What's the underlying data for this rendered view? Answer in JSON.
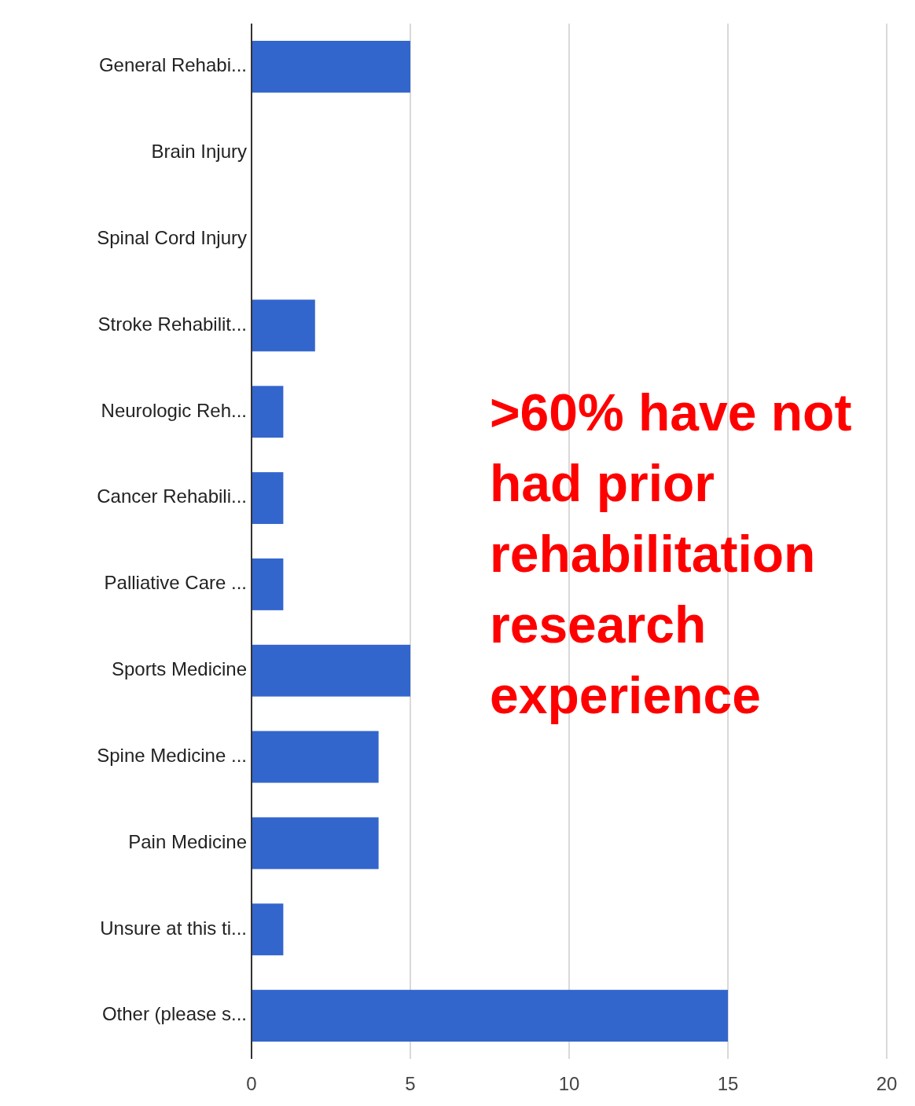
{
  "chart_data": {
    "type": "bar",
    "orientation": "horizontal",
    "categories": [
      "General Rehabi...",
      "Brain Injury",
      "Spinal Cord Injury",
      "Stroke Rehabilit...",
      "Neurologic Reh...",
      "Cancer Rehabili...",
      "Palliative Care ...",
      "Sports Medicine",
      "Spine Medicine ...",
      "Pain Medicine",
      "Unsure at this ti...",
      "Other (please s..."
    ],
    "values": [
      5,
      0,
      0,
      2,
      1,
      1,
      1,
      5,
      4,
      4,
      1,
      15
    ],
    "color": "#3366cc",
    "xlim": [
      0,
      20
    ],
    "xticks": [
      0,
      5,
      10,
      15,
      20
    ],
    "grid": "x",
    "annotations": [
      ">60% have not had prior rehabilitation research experience"
    ]
  }
}
